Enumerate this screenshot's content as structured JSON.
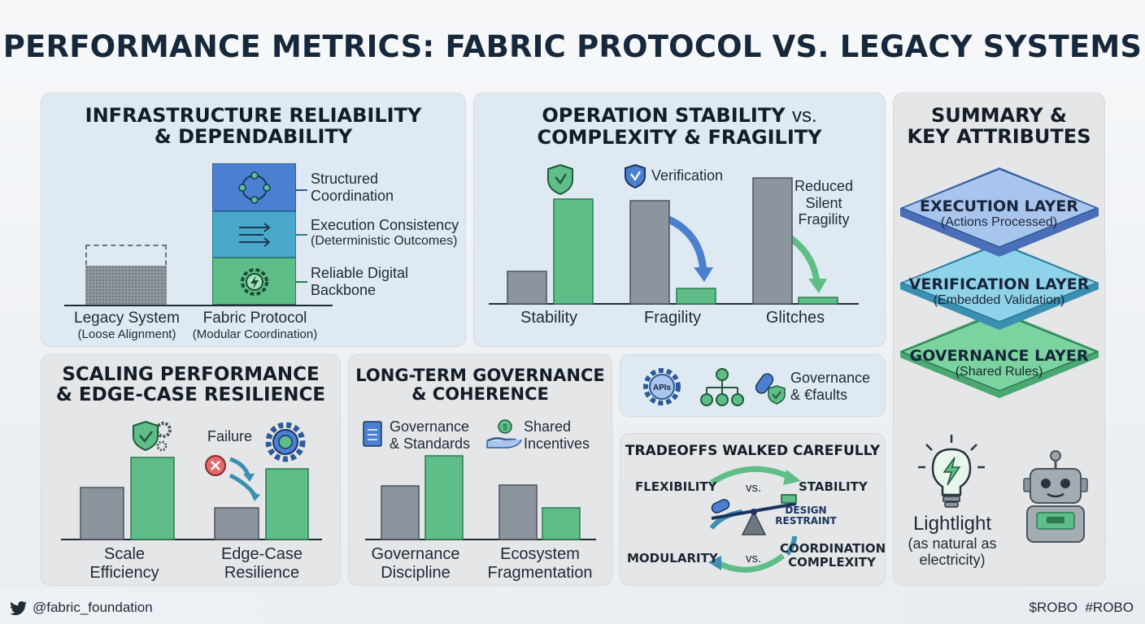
{
  "title": "PERFORMANCE METRICS: FABRIC PROTOCOL VS. LEGACY SYSTEMS",
  "colors": {
    "green": "#5fbe87",
    "grey": "#8c959e",
    "navy": "#16283b",
    "blue_layer": "#4a80cf",
    "teal_layer": "#4aa8cc"
  },
  "infra": {
    "title_line1": "INFRASTRUCTURE RELIABILITY",
    "title_line2": "& DEPENDABILITY",
    "legacy_label": "Legacy System",
    "legacy_sub": "(Loose Alignment)",
    "fabric_label": "Fabric Protocol",
    "fabric_sub": "(Modular Coordination)",
    "blocks": [
      {
        "line1": "Structured",
        "line2": "Coordination",
        "icon": "network-nodes-icon"
      },
      {
        "line1": "Execution Consistency",
        "line2": "(Deterministic Outcomes)",
        "icon": "arrows-flow-icon"
      },
      {
        "line1": "Reliable Digital",
        "line2": "Backbone",
        "icon": "gear-bolt-icon"
      }
    ]
  },
  "operation": {
    "title_line1": "OPERATION STABILITY",
    "title_vs": "vs.",
    "title_line2": "COMPLEXITY & FRAGILITY",
    "verification_label": "Verification",
    "reduced_line1": "Reduced",
    "reduced_line2": "Silent",
    "reduced_line3": "Fragility",
    "categories": [
      "Stability",
      "Fragility",
      "Glitches"
    ]
  },
  "summary": {
    "title_line1": "SUMMARY &",
    "title_line2": "KEY ATTRIBUTES",
    "layers": [
      {
        "name": "EXECUTION LAYER",
        "sub": "(Actions Processed)"
      },
      {
        "name": "VERIFICATION LAYER",
        "sub": "(Embedded Validation)"
      },
      {
        "name": "GOVERNANCE LAYER",
        "sub": "(Shared Rules)"
      }
    ],
    "lightlight": "Lightlight",
    "natural_line1": "(as natural as",
    "natural_line2": "electricity)"
  },
  "scaling": {
    "title_line1": "SCALING PERFORMANCE",
    "title_line2": "& EDGE-CASE RESILIENCE",
    "failure_label": "Failure",
    "cat1_line1": "Scale",
    "cat1_line2": "Efficiency",
    "cat2_line1": "Edge-Case",
    "cat2_line2": "Resilience"
  },
  "governance": {
    "title_line1": "LONG-TERM GOVERNANCE",
    "title_line2": "& COHERENCE",
    "std_line1": "Governance",
    "std_line2": "& Standards",
    "inc_line1": "Shared",
    "inc_line2": "Incentives",
    "cat1_line1": "Governance",
    "cat1_line2": "Discipline",
    "cat2_line1": "Ecosystem",
    "cat2_line2": "Fragmentation"
  },
  "icons_panel": {
    "apis_label": "APIs",
    "gov_line1": "Governance",
    "gov_line2": "& €faults"
  },
  "tradeoffs": {
    "title": "TRADEOFFS WALKED CAREFULLY",
    "flexibility": "FLEXIBILITY",
    "vs1": "vs.",
    "stability": "STABILITY",
    "design_line1": "DESIGN",
    "design_line2": "RESTRAINT",
    "modularity": "MODULARITY",
    "vs2": "vs.",
    "coord_line1": "COORDINATION",
    "coord_line2": "COMPLEXITY"
  },
  "footer": {
    "handle": "@fabric_foundation",
    "tags": "$ROBO  #ROBO"
  }
}
